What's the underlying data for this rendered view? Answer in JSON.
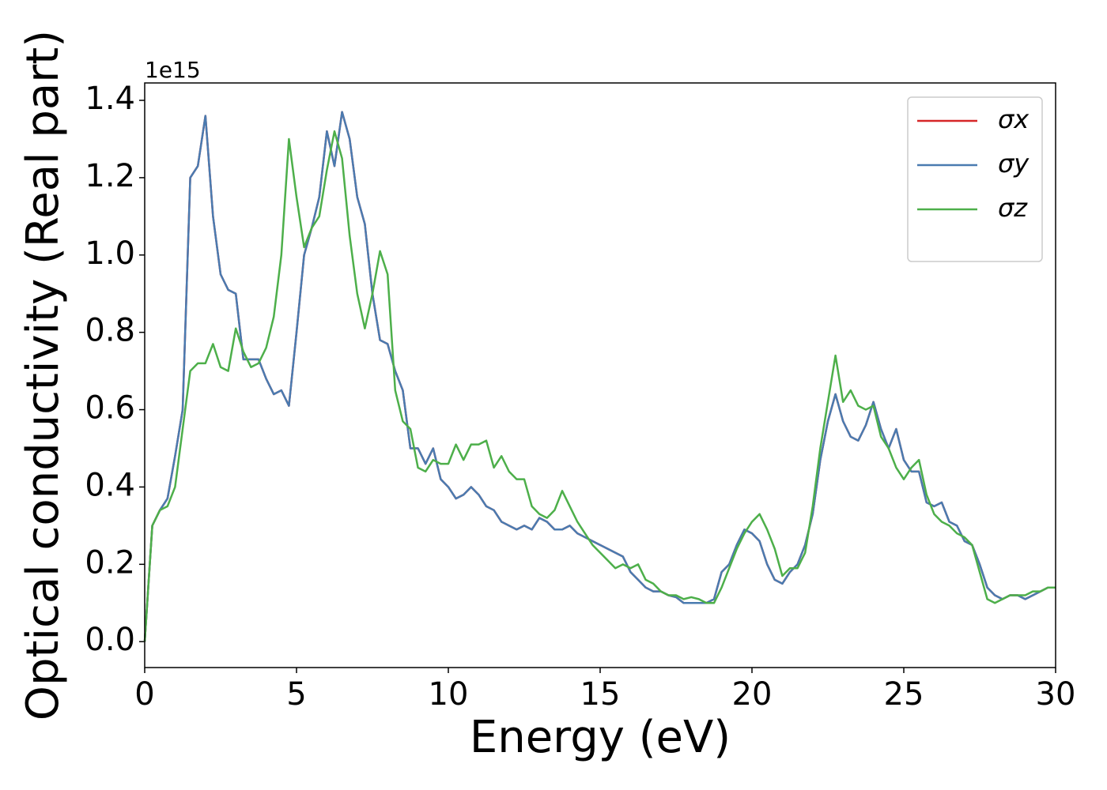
{
  "chart_data": {
    "type": "line",
    "xlabel": "Energy (eV)",
    "ylabel": "Optical conductivity (Real part)",
    "y_offset_label": "1e15",
    "x": [
      0,
      0.25,
      0.5,
      0.75,
      1,
      1.25,
      1.5,
      1.75,
      2,
      2.25,
      2.5,
      2.75,
      3,
      3.25,
      3.5,
      3.75,
      4,
      4.25,
      4.5,
      4.75,
      5,
      5.25,
      5.5,
      5.75,
      6,
      6.25,
      6.5,
      6.75,
      7,
      7.25,
      7.5,
      7.75,
      8,
      8.25,
      8.5,
      8.75,
      9,
      9.25,
      9.5,
      9.75,
      10,
      10.25,
      10.5,
      10.75,
      11,
      11.25,
      11.5,
      11.75,
      12,
      12.25,
      12.5,
      12.75,
      13,
      13.25,
      13.5,
      13.75,
      14,
      14.25,
      14.5,
      14.75,
      15,
      15.25,
      15.5,
      15.75,
      16,
      16.25,
      16.5,
      16.75,
      17,
      17.25,
      17.5,
      17.75,
      18,
      18.25,
      18.5,
      18.75,
      19,
      19.25,
      19.5,
      19.75,
      20,
      20.25,
      20.5,
      20.75,
      21,
      21.25,
      21.5,
      21.75,
      22,
      22.25,
      22.5,
      22.75,
      23,
      23.25,
      23.5,
      23.75,
      24,
      24.25,
      24.5,
      24.75,
      25,
      25.25,
      25.5,
      25.75,
      26,
      26.25,
      26.5,
      26.75,
      27,
      27.25,
      27.5,
      27.75,
      28,
      28.25,
      28.5,
      28.75,
      29,
      29.25,
      29.5,
      29.75,
      30
    ],
    "series": [
      {
        "name": "σx",
        "color": "#d62728",
        "values": [
          0,
          0.3,
          0.34,
          0.37,
          0.48,
          0.6,
          1.2,
          1.23,
          1.36,
          1.1,
          0.95,
          0.91,
          0.9,
          0.73,
          0.73,
          0.73,
          0.68,
          0.64,
          0.65,
          0.61,
          0.8,
          1.0,
          1.07,
          1.15,
          1.32,
          1.23,
          1.37,
          1.3,
          1.15,
          1.08,
          0.9,
          0.78,
          0.77,
          0.7,
          0.65,
          0.5,
          0.5,
          0.46,
          0.5,
          0.42,
          0.4,
          0.37,
          0.38,
          0.4,
          0.38,
          0.35,
          0.34,
          0.31,
          0.3,
          0.29,
          0.3,
          0.29,
          0.32,
          0.31,
          0.29,
          0.29,
          0.3,
          0.28,
          0.27,
          0.26,
          0.25,
          0.24,
          0.23,
          0.22,
          0.18,
          0.16,
          0.14,
          0.13,
          0.13,
          0.12,
          0.115,
          0.1,
          0.1,
          0.1,
          0.1,
          0.11,
          0.18,
          0.2,
          0.25,
          0.29,
          0.28,
          0.26,
          0.2,
          0.16,
          0.15,
          0.18,
          0.2,
          0.25,
          0.33,
          0.47,
          0.57,
          0.64,
          0.57,
          0.53,
          0.52,
          0.56,
          0.62,
          0.55,
          0.5,
          0.55,
          0.47,
          0.44,
          0.44,
          0.36,
          0.35,
          0.36,
          0.31,
          0.3,
          0.26,
          0.25,
          0.2,
          0.14,
          0.12,
          0.11,
          0.12,
          0.12,
          0.11,
          0.12,
          0.13,
          0.14,
          0.14
        ]
      },
      {
        "name": "σy",
        "color": "#4a7bb0",
        "values": [
          0,
          0.3,
          0.34,
          0.37,
          0.48,
          0.6,
          1.2,
          1.23,
          1.36,
          1.1,
          0.95,
          0.91,
          0.9,
          0.73,
          0.73,
          0.73,
          0.68,
          0.64,
          0.65,
          0.61,
          0.8,
          1.0,
          1.07,
          1.15,
          1.32,
          1.23,
          1.37,
          1.3,
          1.15,
          1.08,
          0.9,
          0.78,
          0.77,
          0.7,
          0.65,
          0.5,
          0.5,
          0.46,
          0.5,
          0.42,
          0.4,
          0.37,
          0.38,
          0.4,
          0.38,
          0.35,
          0.34,
          0.31,
          0.3,
          0.29,
          0.3,
          0.29,
          0.32,
          0.31,
          0.29,
          0.29,
          0.3,
          0.28,
          0.27,
          0.26,
          0.25,
          0.24,
          0.23,
          0.22,
          0.18,
          0.16,
          0.14,
          0.13,
          0.13,
          0.12,
          0.115,
          0.1,
          0.1,
          0.1,
          0.1,
          0.11,
          0.18,
          0.2,
          0.25,
          0.29,
          0.28,
          0.26,
          0.2,
          0.16,
          0.15,
          0.18,
          0.2,
          0.25,
          0.33,
          0.47,
          0.57,
          0.64,
          0.57,
          0.53,
          0.52,
          0.56,
          0.62,
          0.55,
          0.5,
          0.55,
          0.47,
          0.44,
          0.44,
          0.36,
          0.35,
          0.36,
          0.31,
          0.3,
          0.26,
          0.25,
          0.2,
          0.14,
          0.12,
          0.11,
          0.12,
          0.12,
          0.11,
          0.12,
          0.13,
          0.14,
          0.14
        ]
      },
      {
        "name": "σz",
        "color": "#4daf4a",
        "values": [
          0,
          0.3,
          0.34,
          0.35,
          0.4,
          0.55,
          0.7,
          0.72,
          0.72,
          0.77,
          0.71,
          0.7,
          0.81,
          0.75,
          0.71,
          0.72,
          0.76,
          0.84,
          1.0,
          1.3,
          1.15,
          1.02,
          1.07,
          1.1,
          1.22,
          1.32,
          1.25,
          1.05,
          0.9,
          0.81,
          0.9,
          1.01,
          0.95,
          0.65,
          0.57,
          0.55,
          0.45,
          0.44,
          0.47,
          0.46,
          0.46,
          0.51,
          0.47,
          0.51,
          0.51,
          0.52,
          0.45,
          0.48,
          0.44,
          0.42,
          0.42,
          0.35,
          0.33,
          0.32,
          0.34,
          0.39,
          0.35,
          0.31,
          0.28,
          0.25,
          0.23,
          0.21,
          0.19,
          0.2,
          0.19,
          0.2,
          0.16,
          0.15,
          0.13,
          0.12,
          0.12,
          0.11,
          0.115,
          0.11,
          0.1,
          0.1,
          0.14,
          0.19,
          0.24,
          0.28,
          0.31,
          0.33,
          0.29,
          0.24,
          0.17,
          0.19,
          0.19,
          0.23,
          0.35,
          0.5,
          0.62,
          0.74,
          0.62,
          0.65,
          0.61,
          0.6,
          0.61,
          0.53,
          0.5,
          0.45,
          0.42,
          0.45,
          0.47,
          0.38,
          0.33,
          0.31,
          0.3,
          0.28,
          0.27,
          0.25,
          0.18,
          0.11,
          0.1,
          0.11,
          0.12,
          0.12,
          0.12,
          0.13,
          0.13,
          0.14,
          0.14
        ]
      }
    ],
    "xlim": [
      0,
      30
    ],
    "xticks": [
      0,
      5,
      10,
      15,
      20,
      25,
      30
    ],
    "ylim": [
      -0.067,
      1.445
    ],
    "yticks": [
      {
        "value": 0,
        "label": "0.0"
      },
      0.2,
      0.4,
      0.6,
      0.8,
      {
        "value": 1,
        "label": "1.0"
      },
      1.2,
      1.4
    ],
    "legend": "upper right",
    "grid": false
  }
}
